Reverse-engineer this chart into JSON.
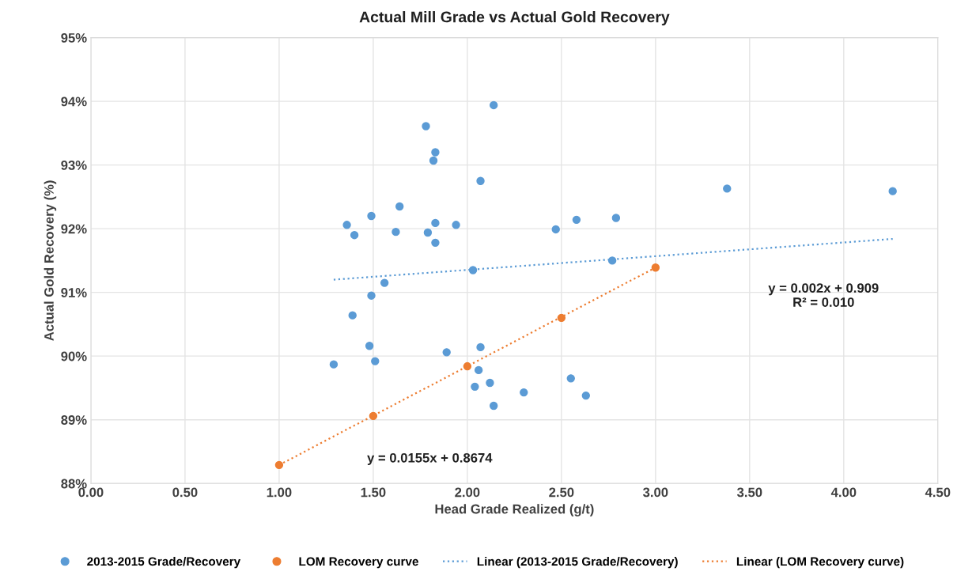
{
  "chart_data": {
    "type": "scatter",
    "title": "Actual Mill Grade vs Actual Gold Recovery",
    "xlabel": "Head Grade Realized (g/t)",
    "ylabel": "Actual Gold Recovery (%)",
    "xlim": [
      0,
      4.5
    ],
    "xticks": [
      {
        "value": 0,
        "label": "0.00"
      },
      {
        "value": 0.5,
        "label": "0.50"
      },
      {
        "value": 1,
        "label": "1.00"
      },
      {
        "value": 1.5,
        "label": "1.50"
      },
      {
        "value": 2,
        "label": "2.00"
      },
      {
        "value": 2.5,
        "label": "2.50"
      },
      {
        "value": 3,
        "label": "3.00"
      },
      {
        "value": 3.5,
        "label": "3.50"
      },
      {
        "value": 4,
        "label": "4.00"
      },
      {
        "value": 4.5,
        "label": "4.50"
      }
    ],
    "ylim": [
      88,
      95
    ],
    "yticks": [
      {
        "value": 88,
        "label": "88%"
      },
      {
        "value": 89,
        "label": "89%"
      },
      {
        "value": 90,
        "label": "90%"
      },
      {
        "value": 91,
        "label": "91%"
      },
      {
        "value": 92,
        "label": "92%"
      },
      {
        "value": 93,
        "label": "93%"
      },
      {
        "value": 94,
        "label": "94%"
      },
      {
        "value": 95,
        "label": "95%"
      }
    ],
    "grid": true,
    "legend": "bottom",
    "marker": "circle",
    "series": [
      {
        "name": "2013-2015 Grade/Recovery",
        "color": "#5b9bd5",
        "x": [
          2.14,
          1.78,
          1.83,
          1.82,
          2.07,
          1.64,
          1.49,
          1.36,
          1.4,
          1.62,
          1.79,
          1.83,
          1.94,
          1.83,
          2.03,
          1.56,
          1.49,
          1.39,
          1.48,
          1.29,
          1.51,
          1.89,
          2.07,
          2.06,
          2.04,
          2.12,
          2.14,
          2.3,
          2.55,
          2.63,
          2.47,
          2.58,
          2.79,
          2.77,
          3.38,
          4.26
        ],
        "values": [
          93.94,
          93.61,
          93.2,
          93.07,
          92.75,
          92.35,
          92.2,
          92.06,
          91.9,
          91.95,
          91.94,
          92.09,
          92.06,
          91.78,
          91.35,
          91.15,
          90.95,
          90.64,
          90.16,
          89.87,
          89.92,
          90.06,
          90.14,
          89.78,
          89.52,
          89.58,
          89.22,
          89.43,
          89.65,
          89.38,
          91.99,
          92.14,
          92.17,
          91.5,
          92.63,
          92.59
        ]
      },
      {
        "name": "LOM Recovery curve",
        "color": "#ed7d31",
        "x": [
          1.0,
          1.5,
          2.0,
          2.5,
          3.0
        ],
        "values": [
          88.29,
          89.06,
          89.84,
          90.6,
          91.39
        ]
      },
      {
        "name": "Linear (2013-2015 Grade/Recovery)",
        "type": "line",
        "line_style": "dotted",
        "marker": "none",
        "color": "#5b9bd5",
        "x": [
          1.29,
          4.26
        ],
        "values": [
          91.2,
          91.84
        ]
      },
      {
        "name": "Linear (LOM Recovery curve)",
        "type": "line",
        "line_style": "dotted",
        "marker": "none",
        "color": "#ed7d31",
        "x": [
          1.0,
          3.0
        ],
        "values": [
          88.29,
          91.39
        ]
      }
    ],
    "annotations": [
      "y = 0.002x + 0.909\nR² = 0.010",
      "y = 0.0155x + 0.8674"
    ]
  }
}
